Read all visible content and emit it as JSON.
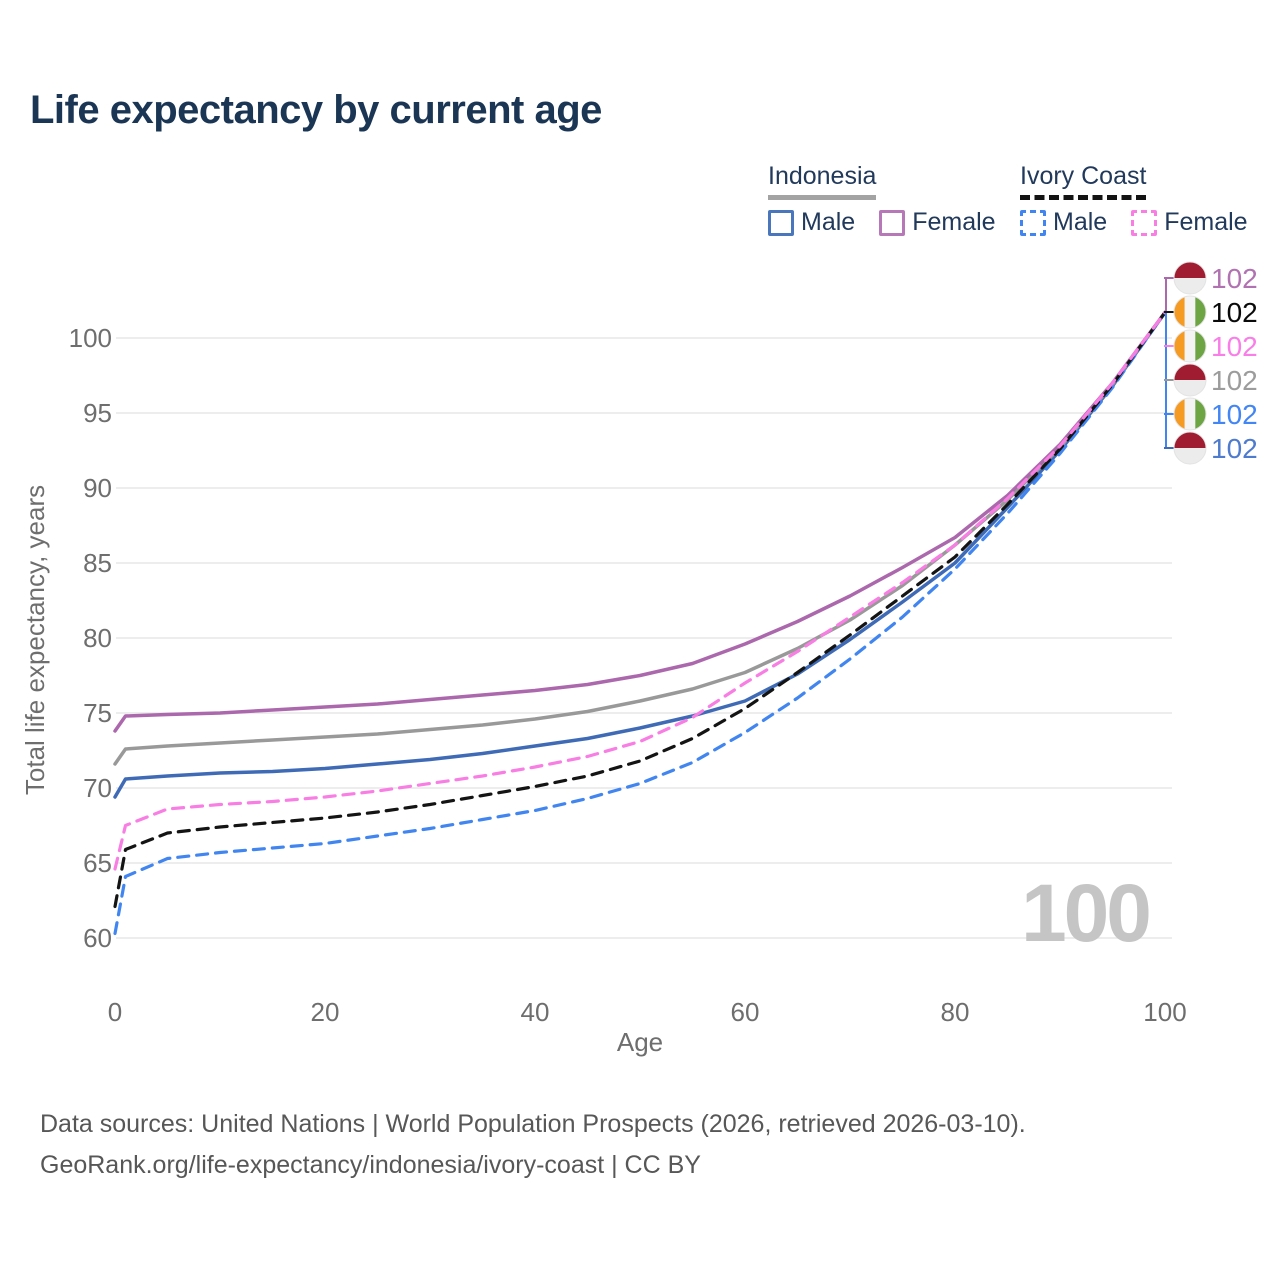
{
  "title": "Life expectancy by current age",
  "legend": {
    "groups": [
      {
        "label": "Indonesia",
        "underline_style": "solid",
        "underline_color": "#A3A3A3",
        "items": [
          {
            "label": "Male",
            "color": "#3F6BB6",
            "dashed": false
          },
          {
            "label": "Female",
            "color": "#AC68AC",
            "dashed": false
          }
        ]
      },
      {
        "label": "Ivory Coast",
        "underline_style": "dashed",
        "underline_color": "#131313",
        "items": [
          {
            "label": "Male",
            "color": "#4186F0",
            "dashed": true
          },
          {
            "label": "Female",
            "color": "#F87EE3",
            "dashed": true
          }
        ]
      }
    ]
  },
  "chart_data": {
    "type": "line",
    "title": "Life expectancy by current age",
    "xlabel": "Age",
    "ylabel": "Total life expectancy, years",
    "xlim": [
      0,
      100
    ],
    "ylim": [
      60,
      102
    ],
    "x_ticks": [
      0,
      20,
      40,
      60,
      80,
      100
    ],
    "y_ticks": [
      60,
      65,
      70,
      75,
      80,
      85,
      90,
      95,
      100
    ],
    "grid": "horizontal",
    "legend_position": "top-right",
    "watermark": "100",
    "x": [
      0,
      1,
      5,
      10,
      15,
      20,
      25,
      30,
      35,
      40,
      45,
      50,
      55,
      60,
      65,
      70,
      75,
      80,
      85,
      90,
      95,
      100
    ],
    "series": [
      {
        "id": "indonesia-male",
        "name": "Indonesia Male",
        "country": "Indonesia",
        "sex": "Male",
        "color": "#3F6BB6",
        "dash": "solid",
        "values": [
          69.4,
          70.6,
          70.8,
          71.0,
          71.1,
          71.3,
          71.6,
          71.9,
          72.3,
          72.8,
          73.3,
          74.0,
          74.8,
          75.8,
          77.6,
          79.9,
          82.4,
          85.0,
          88.7,
          92.5,
          96.8,
          101.7
        ]
      },
      {
        "id": "indonesia-all",
        "name": "Indonesia Total",
        "country": "Indonesia",
        "sex": "Both",
        "color": "#999999",
        "dash": "solid",
        "values": [
          71.6,
          72.6,
          72.8,
          73.0,
          73.2,
          73.4,
          73.6,
          73.9,
          74.2,
          74.6,
          75.1,
          75.8,
          76.6,
          77.7,
          79.3,
          81.2,
          83.5,
          86.2,
          89.2,
          92.7,
          96.9,
          101.7
        ]
      },
      {
        "id": "indonesia-female",
        "name": "Indonesia Female",
        "country": "Indonesia",
        "sex": "Female",
        "color": "#AC68AC",
        "dash": "solid",
        "values": [
          73.8,
          74.8,
          74.9,
          75.0,
          75.2,
          75.4,
          75.6,
          75.9,
          76.2,
          76.5,
          76.9,
          77.5,
          78.3,
          79.6,
          81.1,
          82.8,
          84.7,
          86.7,
          89.5,
          92.9,
          97.0,
          101.7
        ]
      },
      {
        "id": "ivory-coast-male",
        "name": "Ivory Coast Male",
        "country": "Ivory Coast",
        "sex": "Male",
        "color": "#4186F0",
        "dash": "dashed",
        "values": [
          60.3,
          64.1,
          65.3,
          65.7,
          66.0,
          66.3,
          66.8,
          67.3,
          67.9,
          68.5,
          69.3,
          70.3,
          71.7,
          73.7,
          76.0,
          78.6,
          81.4,
          84.6,
          88.3,
          92.3,
          96.7,
          101.7
        ]
      },
      {
        "id": "ivory-coast-all",
        "name": "Ivory Coast Total",
        "country": "Ivory Coast",
        "sex": "Both",
        "color": "#141414",
        "dash": "dashed",
        "values": [
          62.1,
          65.9,
          67.0,
          67.4,
          67.7,
          68.0,
          68.4,
          68.9,
          69.5,
          70.1,
          70.8,
          71.8,
          73.3,
          75.3,
          77.7,
          80.2,
          82.8,
          85.4,
          88.9,
          92.6,
          96.9,
          101.7
        ]
      },
      {
        "id": "ivory-coast-female",
        "name": "Ivory Coast Female",
        "country": "Ivory Coast",
        "sex": "Female",
        "color": "#F87EE3",
        "dash": "dashed",
        "values": [
          64.6,
          67.5,
          68.6,
          68.9,
          69.1,
          69.4,
          69.8,
          70.3,
          70.8,
          71.4,
          72.1,
          73.1,
          74.7,
          77.0,
          79.1,
          81.4,
          83.7,
          86.2,
          89.3,
          92.8,
          97.0,
          101.7
        ]
      }
    ]
  },
  "end_labels": [
    {
      "id": "indonesia-female",
      "flag": "indonesia",
      "text": "102",
      "color": "#B172B1",
      "leader_color": "#AC68AC"
    },
    {
      "id": "ivory-coast-all",
      "flag": "ivory-coast",
      "text": "102",
      "color": "#0A0A0A",
      "leader_color": "#141414"
    },
    {
      "id": "ivory-coast-female",
      "flag": "ivory-coast",
      "text": "102",
      "color": "#F97EE8",
      "leader_color": "#F87EE3"
    },
    {
      "id": "indonesia-all",
      "flag": "indonesia",
      "text": "102",
      "color": "#9C9C9C",
      "leader_color": "#999999"
    },
    {
      "id": "ivory-coast-male",
      "flag": "ivory-coast",
      "text": "102",
      "color": "#4285F4",
      "leader_color": "#4186F0"
    },
    {
      "id": "indonesia-male",
      "flag": "indonesia",
      "text": "102",
      "color": "#4E7BCE",
      "leader_color": "#3F6BB6"
    }
  ],
  "flags": {
    "indonesia": {
      "top": "#A01C30",
      "bottom": "#ECECEC"
    },
    "ivory_coast": {
      "left": "#F59A23",
      "middle": "#F4F4F4",
      "right": "#6DA544"
    }
  },
  "footer": {
    "line1": "Data sources: United Nations | World Population Prospects (2026, retrieved 2026-03-10).",
    "line2": "GeoRank.org/life-expectancy/indonesia/ivory-coast | CC BY"
  }
}
